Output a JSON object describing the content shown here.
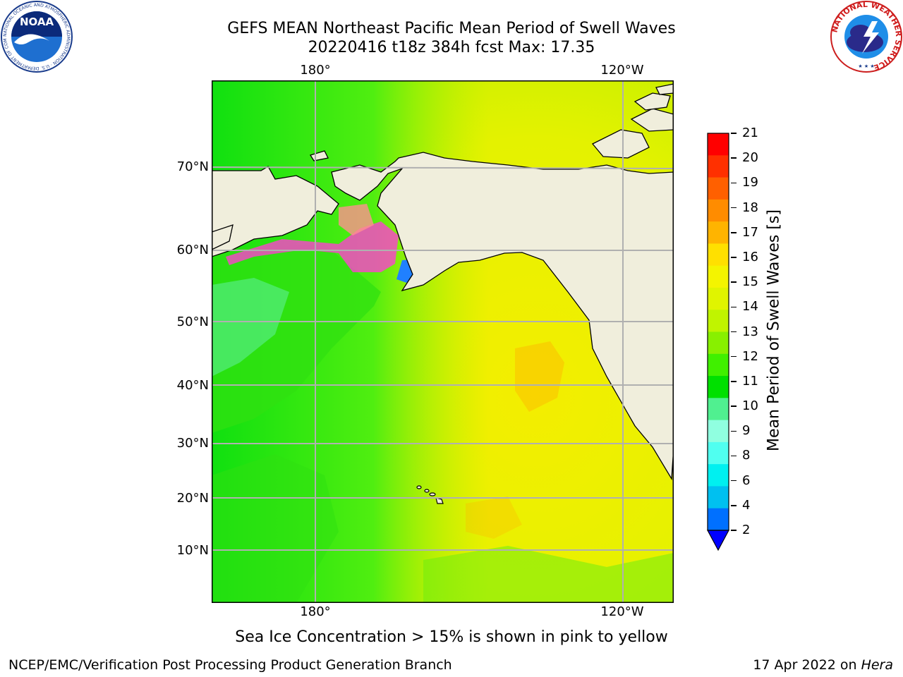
{
  "title": {
    "line1": "GEFS MEAN Northeast Pacific Mean Period of Swell Waves",
    "line2": "20220416 t18z 384h fcst   Max: 17.35"
  },
  "map": {
    "lon_labels": [
      "180°",
      "120°W"
    ],
    "lat_labels": [
      "70°N",
      "60°N",
      "50°N",
      "40°N",
      "30°N",
      "20°N",
      "10°N"
    ],
    "land_color": "#f0eedc",
    "grid_color": "#b0b0b0"
  },
  "colorbar": {
    "label": "Mean Period of Swell Waves [s]",
    "ticks": [
      "21",
      "20",
      "19",
      "18",
      "17",
      "16",
      "15",
      "14",
      "13",
      "12",
      "11",
      "10",
      "9",
      "8",
      "6",
      "4",
      "2"
    ],
    "colors": [
      "#ff0000",
      "#ff3000",
      "#ff6000",
      "#ff8c00",
      "#ffb400",
      "#ffe000",
      "#f4f400",
      "#e0f400",
      "#c0f400",
      "#88f000",
      "#40f000",
      "#00e000",
      "#50f090",
      "#90ffe0",
      "#50fff0",
      "#00f0f0",
      "#00c0f0",
      "#0070ff"
    ],
    "extend_color": "#0000ff"
  },
  "caption": "Sea Ice Concentration > 15% is shown in pink to yellow",
  "footer": {
    "left": "NCEP/EMC/Verification Post Processing Product Generation Branch",
    "right_date": "17 Apr 2022 on ",
    "right_host": "Hera"
  },
  "logos": {
    "noaa_text": "NOAA",
    "noaa_ring": "NATIONAL OCEANIC AND ATMOSPHERIC ADMINISTRATION · U.S. DEPARTMENT OF COMMERCE",
    "nws_ring": "NATIONAL WEATHER SERVICE"
  }
}
